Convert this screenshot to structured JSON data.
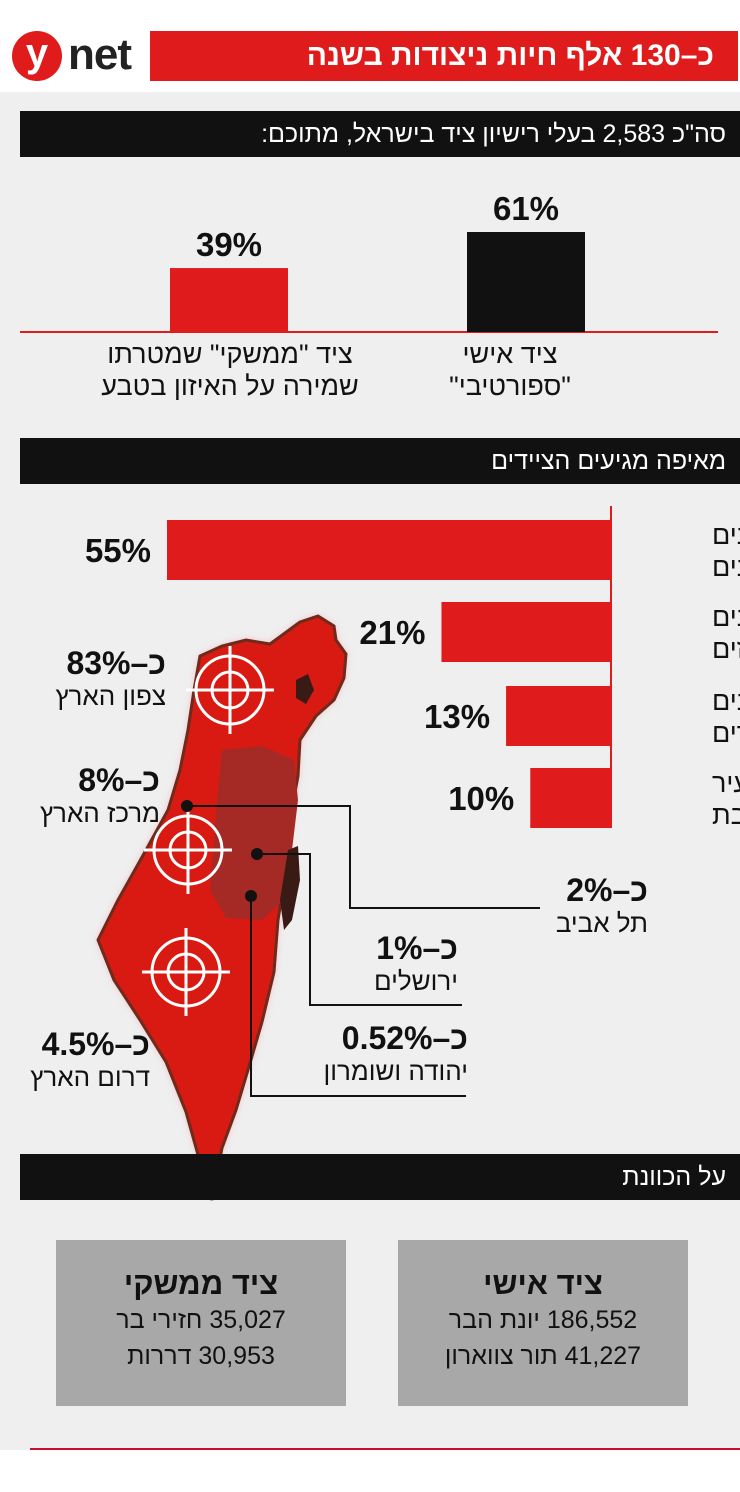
{
  "header": {
    "logo_letter": "y",
    "logo_text": "net",
    "title": "כ–130 אלף חיות ניצודות בשנה"
  },
  "section1": {
    "title": "סה\"כ 2,583 בעלי רישיון ציד בישראל, מתוכם:",
    "label_a_line1": "ציד אישי",
    "label_a_line2": "\"ספורטיבי\"",
    "label_b_line1": "ציד \"ממשקי\" שמטרתו",
    "label_b_line2": "שמירה על האיזון בטבע"
  },
  "section2": {
    "title": "מאיפה מגיעים הציידים"
  },
  "map_labels": {
    "north": {
      "value": "כ–83%",
      "label": "צפון הארץ"
    },
    "center": {
      "value": "כ–8%",
      "label": "מרכז הארץ"
    },
    "south": {
      "value": "כ–4.5%",
      "label": "דרום הארץ"
    },
    "telaviv": {
      "value": "כ–2%",
      "label": "תל אביב"
    },
    "jerusalem": {
      "value": "כ–1%",
      "label": "ירושלים"
    },
    "judea": {
      "value": "כ–0.52%",
      "label": "יהודה ושומרון"
    }
  },
  "section3": {
    "title": "על הכוונת",
    "personal": {
      "title": "ציד אישי",
      "line1": "186,552 יונת הבר",
      "line2": "41,227 תור צווארון"
    },
    "managed": {
      "title": "ציד ממשקי",
      "line1": "35,027 חזירי בר",
      "line2": "30,953 דררות"
    }
  },
  "chart_data": [
    {
      "type": "bar",
      "categories": [
        "ציד אישי \"ספורטיבי\"",
        "ציד \"ממשקי\" שמטרתו שמירה על האיזון בטבע"
      ],
      "values": [
        61,
        39
      ],
      "value_labels": [
        "61%",
        "39%"
      ],
      "colors": [
        "#111111",
        "#e01b1b"
      ],
      "unit": "%"
    },
    {
      "type": "bar",
      "orientation": "horizontal",
      "categories": [
        [
          "יישובים",
          "ערבים"
        ],
        [
          "יישובים",
          "דרוזים"
        ],
        [
          "יישובים",
          "יהודים"
        ],
        [
          "עיר",
          "מעורבת"
        ]
      ],
      "values": [
        55,
        21,
        13,
        10
      ],
      "value_labels": [
        "55%",
        "21%",
        "13%",
        "10%"
      ],
      "color": "#e01b1b",
      "unit": "%"
    }
  ]
}
